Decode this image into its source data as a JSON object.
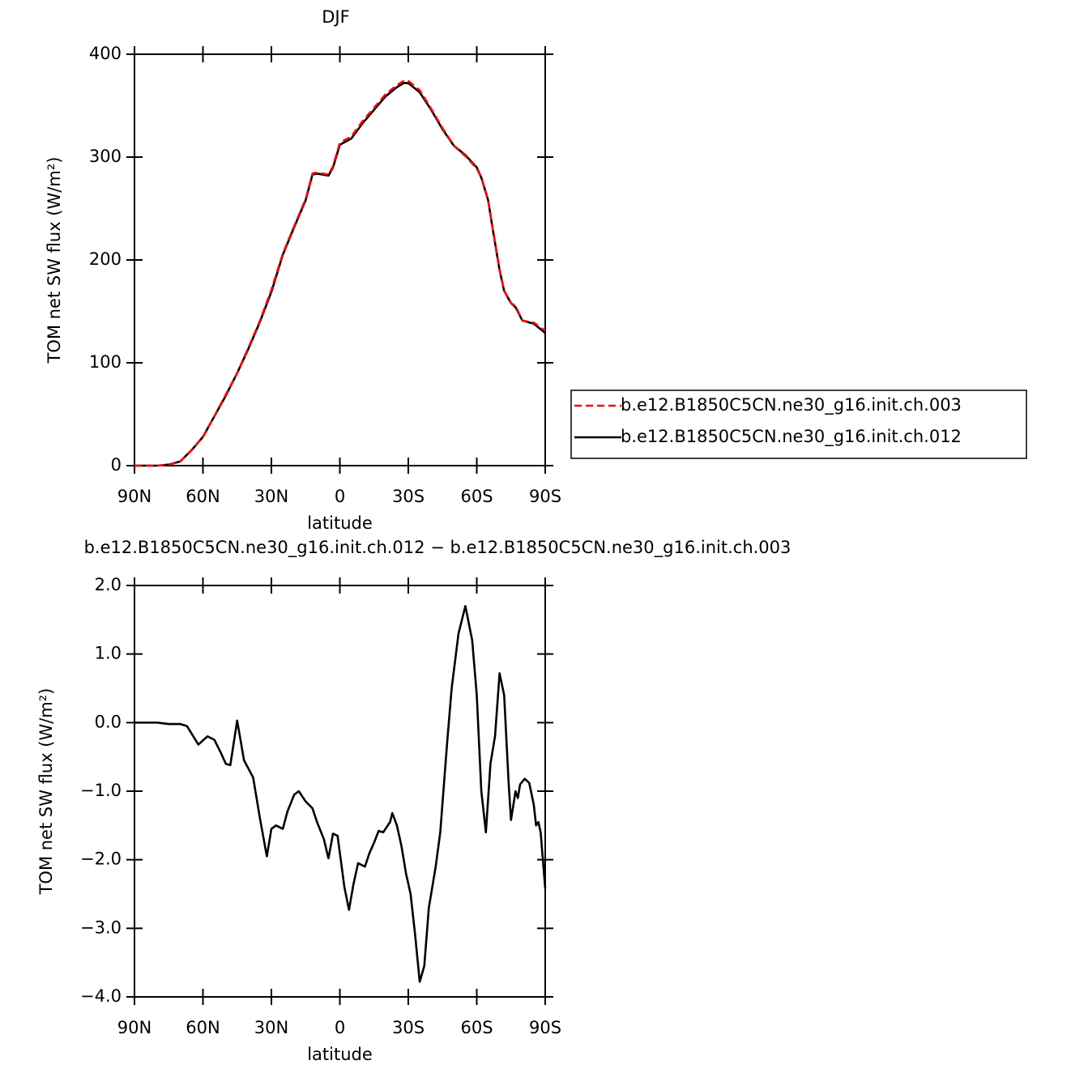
{
  "chart_data": [
    {
      "type": "line",
      "title": "DJF",
      "xlabel": "latitude",
      "ylabel": "TOM net SW flux (W/m²)",
      "x": [
        90,
        85,
        80,
        75,
        70,
        65,
        60,
        55,
        50,
        45,
        40,
        35,
        30,
        25,
        20,
        15,
        12,
        10,
        5,
        3,
        0,
        -5,
        -10,
        -15,
        -20,
        -25,
        -28,
        -30,
        -35,
        -40,
        -45,
        -50,
        -55,
        -60,
        -62,
        -65,
        -67,
        -70,
        -72,
        -75,
        -77,
        -80,
        -85,
        -90
      ],
      "series": [
        {
          "name": "b.e12.B1850C5CN.ne30_g16.init.ch.003",
          "color": "#ff0000",
          "linestyle": "dashed",
          "values": [
            0,
            0,
            0,
            1,
            4,
            15,
            28,
            48,
            69,
            90,
            115,
            141,
            171,
            206,
            233,
            259,
            284,
            285,
            283,
            291,
            314,
            320,
            335,
            348,
            361,
            370,
            374,
            374,
            365,
            347,
            328,
            311,
            301,
            289,
            280,
            258,
            230,
            190,
            170,
            158,
            155,
            141,
            139,
            131
          ]
        },
        {
          "name": "b.e12.B1850C5CN.ne30_g16.init.ch.012",
          "color": "#000000",
          "linestyle": "solid",
          "values": [
            0,
            0,
            0,
            1,
            4,
            15,
            28,
            48,
            68,
            90,
            114,
            140,
            169,
            205,
            232,
            258,
            283,
            284,
            282,
            290,
            312,
            318,
            333,
            346,
            359,
            368,
            372,
            372,
            363,
            346,
            327,
            311,
            302,
            290,
            280,
            258,
            230,
            190,
            170,
            158,
            154,
            141,
            138,
            129
          ]
        }
      ],
      "xlim": [
        90,
        -90
      ],
      "xticks": [
        {
          "value": 90,
          "label": "90N"
        },
        {
          "value": 60,
          "label": "60N"
        },
        {
          "value": 30,
          "label": "30N"
        },
        0,
        {
          "value": -30,
          "label": "30S"
        },
        {
          "value": -60,
          "label": "60S"
        },
        {
          "value": -90,
          "label": "90S"
        }
      ],
      "ylim": [
        0,
        400
      ],
      "yticks": [
        0,
        100,
        200,
        300,
        400
      ],
      "legend": "right"
    },
    {
      "type": "line",
      "title": "b.e12.B1850C5CN.ne30_g16.init.ch.012 − b.e12.B1850C5CN.ne30_g16.init.ch.003",
      "xlabel": "latitude",
      "ylabel": "TOM net SW flux (W/m²)",
      "x": [
        90,
        80,
        75,
        70,
        67,
        62,
        58,
        55,
        52,
        50,
        48,
        45,
        42,
        38,
        35,
        32,
        30,
        28,
        25,
        23,
        20,
        18,
        15,
        12,
        10,
        7,
        5,
        3,
        1,
        -2,
        -4,
        -6,
        -8,
        -11,
        -13,
        -15,
        -17,
        -19,
        -22,
        -23,
        -25,
        -27,
        -29,
        -31,
        -33,
        -35,
        -37,
        -39,
        -42,
        -44,
        -47,
        -49,
        -52,
        -55,
        -58,
        -60,
        -62,
        -64,
        -66,
        -68,
        -70,
        -72,
        -74,
        -75,
        -77,
        -78,
        -79,
        -81,
        -83,
        -85,
        -86,
        -87,
        -88,
        -90
      ],
      "values": [
        0,
        0,
        -0.02,
        -0.02,
        -0.05,
        -0.32,
        -0.2,
        -0.25,
        -0.45,
        -0.6,
        -0.62,
        0.03,
        -0.55,
        -0.8,
        -1.4,
        -1.95,
        -1.55,
        -1.5,
        -1.55,
        -1.3,
        -1.05,
        -1.0,
        -1.15,
        -1.25,
        -1.45,
        -1.7,
        -1.98,
        -1.62,
        -1.65,
        -2.4,
        -2.73,
        -2.35,
        -2.05,
        -2.1,
        -1.9,
        -1.75,
        -1.58,
        -1.6,
        -1.45,
        -1.32,
        -1.5,
        -1.8,
        -2.2,
        -2.5,
        -3.1,
        -3.78,
        -3.55,
        -2.7,
        -2.1,
        -1.6,
        -0.3,
        0.5,
        1.3,
        1.7,
        1.2,
        0.4,
        -1.0,
        -1.6,
        -0.6,
        -0.2,
        0.72,
        0.4,
        -0.9,
        -1.42,
        -1.0,
        -1.1,
        -0.9,
        -0.82,
        -0.88,
        -1.2,
        -1.5,
        -1.45,
        -1.6,
        -2.42
      ],
      "color": "#000000",
      "xlim": [
        90,
        -90
      ],
      "xticks": [
        {
          "value": 90,
          "label": "90N"
        },
        {
          "value": 60,
          "label": "60N"
        },
        {
          "value": 30,
          "label": "30N"
        },
        0,
        {
          "value": -30,
          "label": "30S"
        },
        {
          "value": -60,
          "label": "60S"
        },
        {
          "value": -90,
          "label": "90S"
        }
      ],
      "ylim": [
        -4,
        2
      ],
      "yticks": [
        {
          "value": -4,
          "label": "−4.0"
        },
        {
          "value": -3,
          "label": "−3.0"
        },
        {
          "value": -2,
          "label": "−2.0"
        },
        {
          "value": -1,
          "label": "−1.0"
        },
        {
          "value": 0,
          "label": "0.0"
        },
        {
          "value": 1,
          "label": "1.0"
        },
        {
          "value": 2,
          "label": "2.0"
        }
      ]
    }
  ]
}
